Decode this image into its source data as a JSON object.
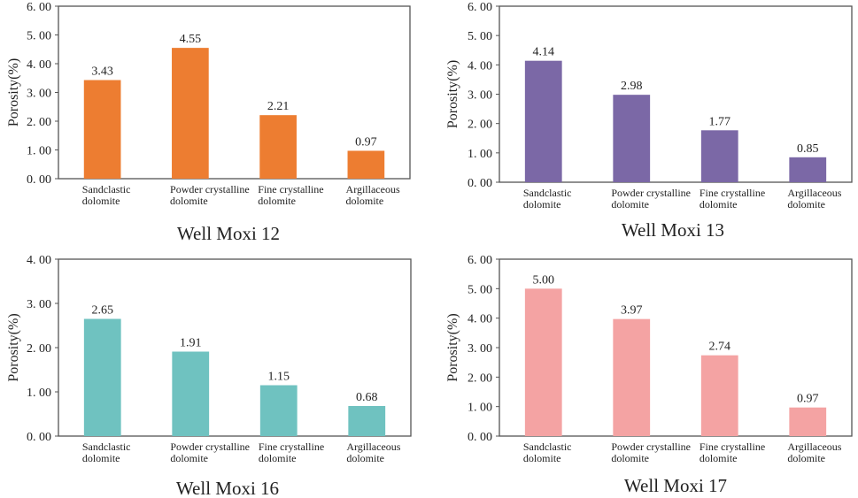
{
  "chart_data": [
    {
      "type": "bar",
      "title": "Well Moxi 12",
      "ylabel": "Porosity(%)",
      "xlabel": "",
      "ylim": [
        0,
        6
      ],
      "yticks": [
        "0. 00",
        "1. 00",
        "2. 00",
        "3. 00",
        "4. 00",
        "5. 00",
        "6. 00"
      ],
      "categories": [
        [
          "Sandclastic",
          "dolomite"
        ],
        [
          "Powder crystalline",
          "dolomite"
        ],
        [
          "Fine crystalline",
          "dolomite"
        ],
        [
          "Argillaceous",
          "dolomite"
        ]
      ],
      "values": [
        3.43,
        4.55,
        2.21,
        0.97
      ],
      "value_labels": [
        "3.43",
        "4.55",
        "2.21",
        "0.97"
      ],
      "color": "#ED7D31",
      "grid": false
    },
    {
      "type": "bar",
      "title": "Well Moxi 13",
      "ylabel": "Porosity(%)",
      "xlabel": "",
      "ylim": [
        0,
        6
      ],
      "yticks": [
        "0. 00",
        "1. 00",
        "2. 00",
        "3. 00",
        "4. 00",
        "5. 00",
        "6. 00"
      ],
      "categories": [
        [
          "Sandclastic",
          "dolomite"
        ],
        [
          "Powder crystalline",
          "dolomite"
        ],
        [
          "Fine crystalline",
          "dolomite"
        ],
        [
          "Argillaceous",
          "dolomite"
        ]
      ],
      "values": [
        4.14,
        2.98,
        1.77,
        0.85
      ],
      "value_labels": [
        "4.14",
        "2.98",
        "1.77",
        "0.85"
      ],
      "color": "#7B68A6",
      "grid": false
    },
    {
      "type": "bar",
      "title": "Well Moxi 16",
      "ylabel": "Porosity(%)",
      "xlabel": "",
      "ylim": [
        0,
        4
      ],
      "yticks": [
        "0. 00",
        "1. 00",
        "2. 00",
        "3. 00",
        "4. 00"
      ],
      "categories": [
        [
          "Sandclastic",
          "dolomite"
        ],
        [
          "Powder crystalline",
          "dolomite"
        ],
        [
          "Fine crystalline",
          "dolomite"
        ],
        [
          "Argillaceous",
          "dolomite"
        ]
      ],
      "values": [
        2.65,
        1.91,
        1.15,
        0.68
      ],
      "value_labels": [
        "2.65",
        "1.91",
        "1.15",
        "0.68"
      ],
      "color": "#6FC2C0",
      "grid": false
    },
    {
      "type": "bar",
      "title": "Well Moxi 17",
      "ylabel": "Porosity(%)",
      "xlabel": "",
      "ylim": [
        0,
        6
      ],
      "yticks": [
        "0. 00",
        "1. 00",
        "2. 00",
        "3. 00",
        "4. 00",
        "5. 00",
        "6. 00"
      ],
      "categories": [
        [
          "Sandclastic",
          "dolomite"
        ],
        [
          "Powder crystalline",
          "dolomite"
        ],
        [
          "Fine crystalline",
          "dolomite"
        ],
        [
          "Argillaceous",
          "dolomite"
        ]
      ],
      "values": [
        5.0,
        3.97,
        2.74,
        0.97
      ],
      "value_labels": [
        "5.00",
        "3.97",
        "2.74",
        "0.97"
      ],
      "color": "#F4A3A3",
      "grid": false
    }
  ]
}
